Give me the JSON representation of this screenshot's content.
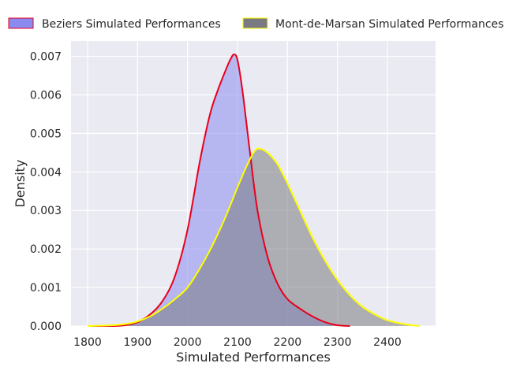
{
  "chart_data": {
    "type": "area",
    "title": "",
    "xlabel": "Simulated Performances",
    "ylabel": "Density",
    "xlim": [
      1770,
      2495
    ],
    "ylim": [
      0,
      0.0074
    ],
    "x_ticks": [
      1800,
      1900,
      2000,
      2100,
      2200,
      2300,
      2400
    ],
    "y_ticks": [
      0.0,
      0.001,
      0.002,
      0.003,
      0.004,
      0.005,
      0.006,
      0.007
    ],
    "y_tick_labels": [
      "0.000",
      "0.001",
      "0.002",
      "0.003",
      "0.004",
      "0.005",
      "0.006",
      "0.007"
    ],
    "grid": true,
    "legend_placement": "top",
    "series": [
      {
        "name": "Beziers Simulated Performances",
        "fill_color": "#8a8af0",
        "line_color": "#e8001c",
        "x": [
          1800,
          1850,
          1875,
          1900,
          1925,
          1950,
          1975,
          2000,
          2025,
          2045,
          2060,
          2075,
          2085,
          2093,
          2100,
          2110,
          2125,
          2140,
          2160,
          2180,
          2200,
          2225,
          2250,
          2275,
          2300,
          2325
        ],
        "y": [
          0.0,
          0.0,
          2e-05,
          0.0001,
          0.0003,
          0.00065,
          0.0013,
          0.0025,
          0.0043,
          0.0055,
          0.0061,
          0.0066,
          0.0069,
          0.00705,
          0.0069,
          0.0061,
          0.0045,
          0.003,
          0.0018,
          0.0011,
          0.0007,
          0.00045,
          0.00025,
          0.0001,
          2e-05,
          0.0
        ]
      },
      {
        "name": "Mont-de-Marsan Simulated Performances",
        "fill_color": "#7a7a82",
        "line_color": "#ffff00",
        "x": [
          1800,
          1850,
          1875,
          1900,
          1925,
          1950,
          1975,
          2000,
          2025,
          2050,
          2075,
          2100,
          2120,
          2135,
          2145,
          2160,
          2180,
          2200,
          2225,
          2250,
          2275,
          2300,
          2325,
          2350,
          2375,
          2400,
          2425,
          2450,
          2465
        ],
        "y": [
          0.0,
          2e-05,
          5e-05,
          0.00012,
          0.00025,
          0.00045,
          0.0007,
          0.001,
          0.0015,
          0.0021,
          0.0028,
          0.0036,
          0.0042,
          0.00455,
          0.0046,
          0.0045,
          0.0042,
          0.0037,
          0.003,
          0.0023,
          0.0017,
          0.0012,
          0.0008,
          0.0005,
          0.0003,
          0.00015,
          7e-05,
          2e-05,
          0.0
        ]
      }
    ]
  }
}
